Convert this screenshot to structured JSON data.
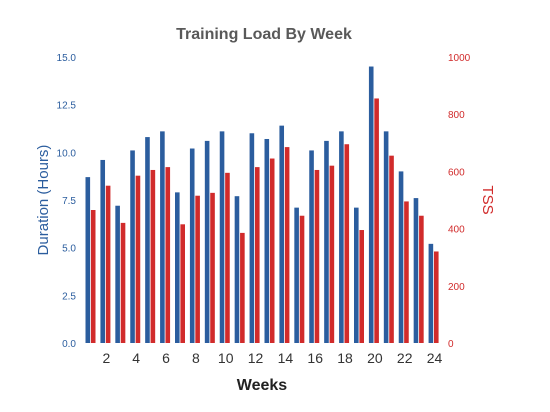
{
  "chart_data": {
    "type": "bar",
    "title": "Training Load By Week",
    "xlabel": "Weeks",
    "y1label": "Duration (Hours)",
    "y2label": "TSS",
    "y1lim": [
      0,
      15
    ],
    "y2lim": [
      0,
      1000
    ],
    "y1ticks": [
      "0.0",
      "2.5",
      "5.0",
      "7.5",
      "10.0",
      "12.5",
      "15.0"
    ],
    "y2ticks": [
      "0",
      "200",
      "400",
      "600",
      "800",
      "1000"
    ],
    "xticks": [
      "2",
      "4",
      "6",
      "8",
      "10",
      "12",
      "14",
      "16",
      "18",
      "20",
      "22",
      "24"
    ],
    "categories": [
      1,
      2,
      3,
      4,
      5,
      6,
      7,
      8,
      9,
      10,
      11,
      12,
      13,
      14,
      15,
      16,
      17,
      18,
      19,
      20,
      21,
      22,
      23,
      24
    ],
    "grid": false,
    "legend": "none",
    "series": [
      {
        "axis": "left",
        "color": "#2b5d9e",
        "values": [
          8.7,
          9.6,
          7.2,
          10.1,
          10.8,
          11.1,
          7.9,
          10.2,
          10.6,
          11.1,
          7.7,
          11.0,
          10.7,
          11.4,
          7.1,
          10.1,
          10.6,
          11.1,
          7.1,
          14.5,
          11.1,
          9.0,
          7.6,
          5.2
        ]
      },
      {
        "axis": "right",
        "color": "#d12b2b",
        "values": [
          465,
          550,
          420,
          585,
          605,
          615,
          415,
          515,
          525,
          595,
          385,
          615,
          645,
          685,
          445,
          605,
          620,
          695,
          395,
          855,
          655,
          495,
          445,
          320
        ]
      }
    ]
  }
}
